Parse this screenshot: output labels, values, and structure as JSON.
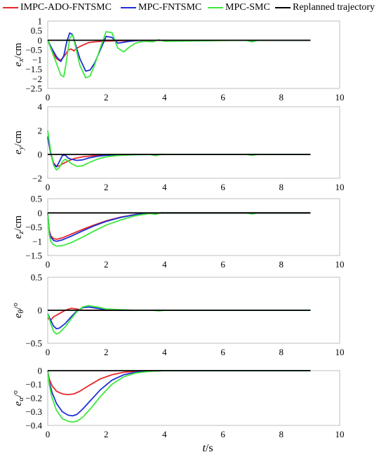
{
  "legend": {
    "items": [
      {
        "label": "IMPC-ADO-FNTSMC",
        "color": "#e8262a"
      },
      {
        "label": "MPC-FNTSMC",
        "color": "#1f2fd6"
      },
      {
        "label": "MPC-SMC",
        "color": "#3ee83e"
      },
      {
        "label": "Replanned trajectory",
        "color": "#000000"
      }
    ]
  },
  "x_axis": {
    "label_var": "t",
    "label_unit": "/s",
    "ticks": [
      "0",
      "2",
      "4",
      "6",
      "8",
      "10"
    ]
  },
  "chart_data": [
    {
      "type": "line",
      "ylabel_var": "e",
      "ylabel_sub": "x",
      "ylabel_unit": "/cm",
      "ylim": [
        -2.5,
        1
      ],
      "yticks": [
        "1",
        "0.5",
        "0",
        "−0.5",
        "−1",
        "−1.5",
        "−2",
        "−2.5"
      ],
      "xlim": [
        0,
        10
      ],
      "series": [
        {
          "name": "IMPC-ADO-FNTSMC",
          "color": "#e8262a",
          "x": [
            0,
            0.1,
            0.2,
            0.3,
            0.4,
            0.5,
            0.6,
            0.7,
            0.8,
            0.9,
            1.0,
            1.2,
            1.4,
            1.6,
            2.0,
            2.5,
            3.0,
            3.5,
            4.0,
            9.0
          ],
          "y": [
            0,
            -0.35,
            -0.7,
            -0.95,
            -1.05,
            -0.95,
            -0.75,
            -0.5,
            -0.45,
            -0.55,
            -0.4,
            -0.25,
            -0.12,
            -0.08,
            -0.04,
            -0.02,
            -0.01,
            0,
            0,
            0
          ]
        },
        {
          "name": "MPC-FNTSMC",
          "color": "#1f2fd6",
          "x": [
            0,
            0.15,
            0.3,
            0.45,
            0.55,
            0.65,
            0.75,
            0.85,
            0.95,
            1.1,
            1.3,
            1.45,
            1.6,
            1.8,
            2.0,
            2.2,
            2.4,
            2.6,
            2.8,
            3.0,
            3.3,
            3.6,
            9.0
          ],
          "y": [
            0,
            -0.45,
            -0.85,
            -1.1,
            -0.8,
            -0.1,
            0.38,
            0.3,
            -0.2,
            -0.95,
            -1.6,
            -1.55,
            -1.2,
            -0.5,
            0.2,
            0.15,
            -0.15,
            -0.1,
            -0.05,
            -0.02,
            0,
            0,
            0
          ]
        },
        {
          "name": "MPC-SMC",
          "color": "#3ee83e",
          "x": [
            0,
            0.15,
            0.3,
            0.45,
            0.55,
            0.65,
            0.75,
            0.85,
            0.95,
            1.1,
            1.3,
            1.45,
            1.6,
            1.8,
            2.0,
            2.2,
            2.4,
            2.6,
            2.8,
            3.0,
            3.3,
            3.6,
            3.8,
            4.0,
            6.8,
            7.0,
            7.2,
            9.0
          ],
          "y": [
            0,
            -0.6,
            -1.2,
            -1.8,
            -1.9,
            -1.0,
            0.1,
            0.28,
            -0.3,
            -1.3,
            -1.95,
            -1.85,
            -1.3,
            -0.4,
            0.45,
            0.4,
            -0.4,
            -0.6,
            -0.35,
            -0.15,
            -0.05,
            -0.08,
            0.03,
            -0.05,
            0,
            -0.08,
            0,
            0
          ]
        },
        {
          "name": "Replanned trajectory",
          "color": "#000000",
          "x": [
            0,
            9.0
          ],
          "y": [
            0,
            0
          ]
        }
      ]
    },
    {
      "type": "line",
      "ylabel_var": "e",
      "ylabel_sub": "y",
      "ylabel_unit": "/cm",
      "ylim": [
        -2,
        4
      ],
      "yticks": [
        "4",
        "2",
        "0",
        "−2"
      ],
      "xlim": [
        0,
        10
      ],
      "series": [
        {
          "name": "IMPC-ADO-FNTSMC",
          "color": "#e8262a",
          "x": [
            0,
            0.1,
            0.2,
            0.3,
            0.4,
            0.5,
            0.7,
            0.9,
            1.2,
            1.6,
            2.0,
            2.5,
            3.0,
            9.0
          ],
          "y": [
            1.4,
            0.2,
            -0.7,
            -1.0,
            -0.95,
            -0.8,
            -0.55,
            -0.35,
            -0.2,
            -0.1,
            -0.05,
            -0.02,
            0,
            0
          ]
        },
        {
          "name": "MPC-FNTSMC",
          "color": "#1f2fd6",
          "x": [
            0,
            0.1,
            0.2,
            0.3,
            0.4,
            0.5,
            0.6,
            0.7,
            0.8,
            1.0,
            1.2,
            1.4,
            1.7,
            2.0,
            2.5,
            3.0,
            9.0
          ],
          "y": [
            1.5,
            0.1,
            -0.8,
            -1.05,
            -0.6,
            -0.1,
            -0.05,
            -0.3,
            -0.4,
            -0.5,
            -0.45,
            -0.3,
            -0.15,
            -0.07,
            -0.02,
            0,
            0
          ]
        },
        {
          "name": "MPC-SMC",
          "color": "#3ee83e",
          "x": [
            0,
            0.1,
            0.2,
            0.3,
            0.4,
            0.5,
            0.6,
            0.7,
            0.8,
            1.0,
            1.2,
            1.4,
            1.7,
            2.0,
            2.5,
            3.0,
            3.5,
            3.7,
            3.9,
            4.0,
            6.8,
            7.0,
            7.2,
            9.0
          ],
          "y": [
            2.0,
            0.3,
            -0.9,
            -1.3,
            -1.1,
            -0.6,
            -0.4,
            -0.55,
            -0.75,
            -1.0,
            -0.95,
            -0.7,
            -0.4,
            -0.2,
            -0.07,
            -0.03,
            0,
            -0.1,
            0.03,
            0,
            0,
            -0.08,
            0,
            0
          ]
        },
        {
          "name": "Replanned trajectory",
          "color": "#000000",
          "x": [
            0,
            9.0
          ],
          "y": [
            0,
            0
          ]
        }
      ]
    },
    {
      "type": "line",
      "ylabel_var": "e",
      "ylabel_sub": "z",
      "ylabel_unit": "/cm",
      "ylim": [
        -1.5,
        0.5
      ],
      "yticks": [
        "0.5",
        "0",
        "−0.5",
        "−1",
        "−1.5"
      ],
      "xlim": [
        0,
        10
      ],
      "series": [
        {
          "name": "IMPC-ADO-FNTSMC",
          "color": "#e8262a",
          "x": [
            0,
            0.05,
            0.1,
            0.2,
            0.3,
            0.5,
            0.8,
            1.2,
            1.6,
            2.0,
            2.5,
            3.0,
            3.5,
            4.0,
            9.0
          ],
          "y": [
            0,
            -0.6,
            -0.8,
            -0.9,
            -0.93,
            -0.88,
            -0.75,
            -0.58,
            -0.42,
            -0.28,
            -0.15,
            -0.06,
            -0.01,
            0,
            0
          ]
        },
        {
          "name": "MPC-FNTSMC",
          "color": "#1f2fd6",
          "x": [
            0,
            0.05,
            0.1,
            0.2,
            0.3,
            0.5,
            0.8,
            1.2,
            1.6,
            2.0,
            2.5,
            3.0,
            3.5,
            4.0,
            9.0
          ],
          "y": [
            0,
            -0.65,
            -0.85,
            -0.97,
            -1.0,
            -0.95,
            -0.82,
            -0.63,
            -0.45,
            -0.3,
            -0.16,
            -0.06,
            -0.01,
            0,
            0
          ]
        },
        {
          "name": "MPC-SMC",
          "color": "#3ee83e",
          "x": [
            0,
            0.05,
            0.1,
            0.2,
            0.3,
            0.5,
            0.8,
            1.2,
            1.6,
            2.0,
            2.5,
            3.0,
            3.5,
            3.7,
            3.9,
            4.0,
            6.8,
            7.0,
            7.2,
            9.0
          ],
          "y": [
            0,
            -0.75,
            -1.0,
            -1.12,
            -1.17,
            -1.15,
            -1.05,
            -0.85,
            -0.63,
            -0.43,
            -0.25,
            -0.1,
            -0.02,
            -0.05,
            0.01,
            0,
            0,
            -0.04,
            0,
            0
          ]
        },
        {
          "name": "Replanned trajectory",
          "color": "#000000",
          "x": [
            0,
            9.0
          ],
          "y": [
            0,
            0
          ]
        }
      ]
    },
    {
      "type": "line",
      "ylabel_var": "e",
      "ylabel_sub": "θ",
      "ylabel_unit": "/°",
      "ylim": [
        -0.5,
        0.5
      ],
      "yticks": [
        "0.5",
        "0",
        "−0.5"
      ],
      "xlim": [
        0,
        10
      ],
      "series": [
        {
          "name": "IMPC-ADO-FNTSMC",
          "color": "#e8262a",
          "x": [
            0,
            0.1,
            0.2,
            0.4,
            0.6,
            0.8,
            1.0,
            1.2,
            1.5,
            2.0,
            2.5,
            9.0
          ],
          "y": [
            -0.12,
            -0.15,
            -0.1,
            -0.05,
            0.0,
            0.03,
            0.02,
            0.0,
            0.0,
            0.0,
            0,
            0
          ]
        },
        {
          "name": "MPC-FNTSMC",
          "color": "#1f2fd6",
          "x": [
            0,
            0.1,
            0.2,
            0.3,
            0.4,
            0.6,
            0.8,
            1.0,
            1.2,
            1.4,
            1.7,
            2.0,
            2.5,
            3.0,
            9.0
          ],
          "y": [
            -0.05,
            -0.15,
            -0.24,
            -0.28,
            -0.27,
            -0.2,
            -0.1,
            -0.01,
            0.04,
            0.05,
            0.03,
            0.01,
            0,
            0,
            0
          ]
        },
        {
          "name": "MPC-SMC",
          "color": "#3ee83e",
          "x": [
            0,
            0.1,
            0.2,
            0.3,
            0.4,
            0.6,
            0.8,
            1.0,
            1.2,
            1.4,
            1.7,
            2.0,
            2.5,
            3.0,
            3.6,
            3.8,
            4.0,
            9.0
          ],
          "y": [
            -0.05,
            -0.2,
            -0.32,
            -0.36,
            -0.34,
            -0.25,
            -0.13,
            -0.02,
            0.05,
            0.07,
            0.05,
            0.02,
            0.01,
            0,
            0,
            -0.01,
            0,
            0
          ]
        },
        {
          "name": "Replanned trajectory",
          "color": "#000000",
          "x": [
            0,
            9.0
          ],
          "y": [
            0,
            0
          ]
        }
      ]
    },
    {
      "type": "line",
      "ylabel_var": "e",
      "ylabel_sub": "α",
      "ylabel_unit": "/°",
      "ylim": [
        -0.4,
        0
      ],
      "yticks": [
        "0",
        "−0.1",
        "−0.2",
        "−0.3",
        "−0.4"
      ],
      "xlim": [
        0,
        10
      ],
      "series": [
        {
          "name": "IMPC-ADO-FNTSMC",
          "color": "#e8262a",
          "x": [
            0,
            0.05,
            0.15,
            0.3,
            0.5,
            0.7,
            0.9,
            1.1,
            1.4,
            1.8,
            2.2,
            2.6,
            3.0,
            3.5,
            9.0
          ],
          "y": [
            0,
            -0.06,
            -0.11,
            -0.15,
            -0.17,
            -0.175,
            -0.17,
            -0.15,
            -0.11,
            -0.06,
            -0.03,
            -0.012,
            -0.004,
            0,
            0
          ]
        },
        {
          "name": "MPC-FNTSMC",
          "color": "#1f2fd6",
          "x": [
            0,
            0.05,
            0.15,
            0.3,
            0.5,
            0.7,
            0.85,
            1.0,
            1.2,
            1.5,
            1.8,
            2.2,
            2.6,
            3.0,
            3.5,
            4.0,
            9.0
          ],
          "y": [
            0,
            -0.08,
            -0.16,
            -0.24,
            -0.3,
            -0.325,
            -0.33,
            -0.32,
            -0.28,
            -0.21,
            -0.14,
            -0.07,
            -0.03,
            -0.012,
            -0.003,
            0,
            0
          ]
        },
        {
          "name": "MPC-SMC",
          "color": "#3ee83e",
          "x": [
            0,
            0.05,
            0.15,
            0.3,
            0.5,
            0.7,
            0.85,
            1.0,
            1.2,
            1.5,
            1.8,
            2.2,
            2.6,
            3.0,
            3.5,
            4.0,
            9.0
          ],
          "y": [
            0,
            -0.1,
            -0.2,
            -0.29,
            -0.35,
            -0.37,
            -0.375,
            -0.37,
            -0.34,
            -0.27,
            -0.19,
            -0.1,
            -0.045,
            -0.018,
            -0.005,
            0,
            0
          ]
        },
        {
          "name": "Replanned trajectory",
          "color": "#000000",
          "x": [
            0,
            9.0
          ],
          "y": [
            0,
            0
          ]
        }
      ]
    }
  ]
}
